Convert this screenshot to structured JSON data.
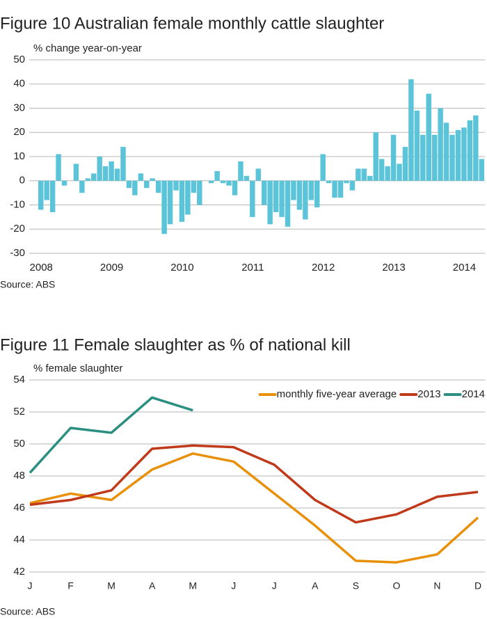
{
  "chart_data": [
    {
      "type": "bar",
      "title": "Figure 10 Australian female monthly cattle slaughter",
      "subtitle": "% change year-on-year",
      "source": "Source: ABS",
      "categories": [
        "2008",
        null,
        null,
        null,
        null,
        null,
        null,
        null,
        null,
        null,
        null,
        null,
        "2009",
        null,
        null,
        null,
        null,
        null,
        null,
        null,
        null,
        null,
        null,
        null,
        "2010",
        null,
        null,
        null,
        null,
        null,
        null,
        null,
        null,
        null,
        null,
        null,
        "2011",
        null,
        null,
        null,
        null,
        null,
        null,
        null,
        null,
        null,
        null,
        null,
        "2012",
        null,
        null,
        null,
        null,
        null,
        null,
        null,
        null,
        null,
        null,
        null,
        "2013",
        null,
        null,
        null,
        null,
        null,
        null,
        null,
        null,
        null,
        null,
        null,
        "2014",
        null,
        null,
        null
      ],
      "values": [
        -12,
        -8,
        -13,
        11,
        -2,
        0,
        7,
        -5,
        1,
        3,
        10,
        6,
        8,
        5,
        14,
        -3,
        -6,
        3,
        -3,
        1,
        -5,
        -22,
        -18,
        -4,
        -17,
        -14,
        -5,
        -10,
        0,
        -1,
        4,
        -1,
        -2,
        -6,
        8,
        2,
        -15,
        5,
        -10,
        -18,
        -13,
        -15,
        -19,
        -8,
        -12,
        -16,
        -8,
        -11,
        11,
        -1,
        -7,
        -7,
        -1,
        -4,
        5,
        5,
        2,
        20,
        9,
        6,
        19,
        7,
        14,
        42,
        29,
        19,
        36,
        19,
        30,
        24,
        19,
        21,
        22,
        25,
        27,
        9
      ],
      "color": "#5bc4d9",
      "ylim": [
        -30,
        50
      ],
      "yticks": [
        -30,
        -20,
        -10,
        0,
        10,
        20,
        30,
        40,
        50
      ],
      "grid": true
    },
    {
      "type": "line",
      "title": "Figure 11 Female slaughter as % of national kill",
      "subtitle": "% female slaughter",
      "source": "Source: ABS",
      "categories": [
        "J",
        "F",
        "M",
        "A",
        "M",
        "J",
        "J",
        "A",
        "S",
        "O",
        "N",
        "D"
      ],
      "series": [
        {
          "name": "monthly five-year average",
          "color": "#e8900a",
          "values": [
            46.3,
            46.9,
            46.5,
            48.4,
            49.4,
            48.9,
            46.9,
            44.9,
            42.7,
            42.6,
            43.1,
            45.4
          ]
        },
        {
          "name": "2013",
          "color": "#c0391a",
          "values": [
            46.2,
            46.5,
            47.1,
            49.7,
            49.9,
            49.8,
            48.7,
            46.5,
            45.1,
            45.6,
            46.7,
            47.0
          ]
        },
        {
          "name": "2014",
          "color": "#2a8f80",
          "values": [
            48.2,
            51.0,
            50.7,
            52.9,
            52.1,
            null,
            null,
            null,
            null,
            null,
            null,
            null
          ]
        }
      ],
      "ylim": [
        42,
        54
      ],
      "yticks": [
        42,
        44,
        46,
        48,
        50,
        52,
        54
      ],
      "grid": true,
      "legend": "top-right"
    }
  ]
}
